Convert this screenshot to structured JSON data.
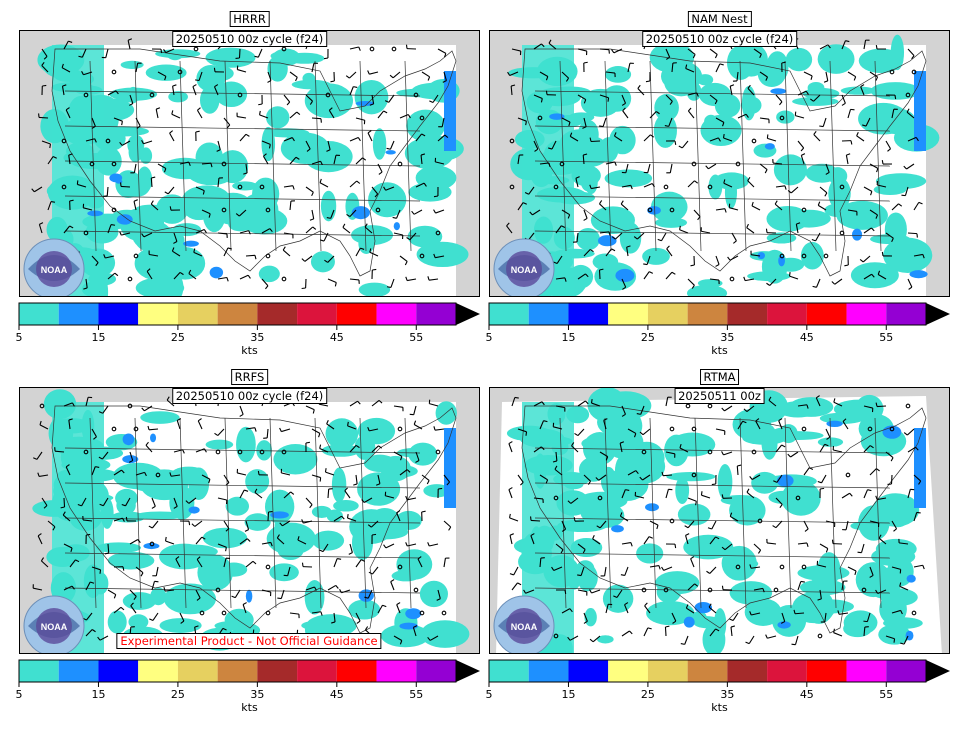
{
  "panels": [
    {
      "model": "HRRR",
      "cycle": "20250510 00z cycle (f24)",
      "warning": ""
    },
    {
      "model": "NAM Nest",
      "cycle": "20250510 00z cycle (f24)",
      "warning": ""
    },
    {
      "model": "RRFS",
      "cycle": "20250510 00z cycle (f24)",
      "warning": "Experimental Product - Not Official Guidance"
    },
    {
      "model": "RTMA",
      "cycle": "20250511 00z",
      "warning": ""
    }
  ],
  "colorbar": {
    "unit": "kts",
    "ticks": [
      "5",
      "15",
      "25",
      "35",
      "45",
      "55"
    ],
    "bins": [
      5,
      10,
      15,
      20,
      25,
      30,
      35,
      40,
      45,
      50,
      55,
      60
    ],
    "colors": [
      "#40e0d0",
      "#1e90ff",
      "#0000ff",
      "#ffff80",
      "#e6d060",
      "#cd853f",
      "#a52a2a",
      "#dc143c",
      "#ff0000",
      "#ff00ff",
      "#9400d3"
    ],
    "extend_color": "#000000"
  },
  "logo_text": "NOAA",
  "colors": {
    "land_outside": "#d3d3d3",
    "background": "#ffffff",
    "wind_fill": "#40e0d0"
  }
}
